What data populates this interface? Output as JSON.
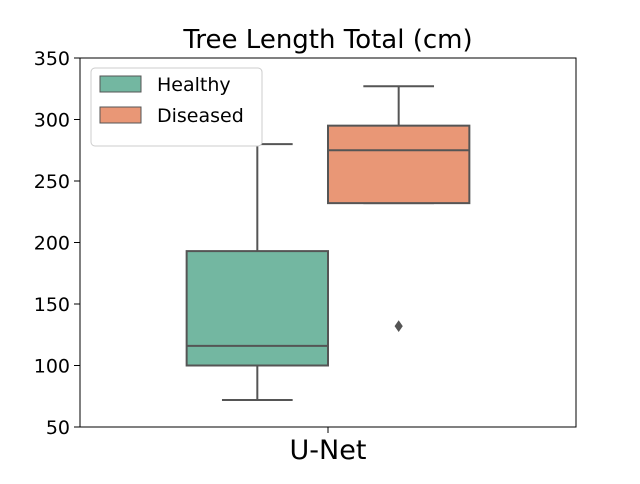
{
  "chart_data": {
    "type": "box",
    "title": "Tree Length Total (cm)",
    "xlabel": "",
    "ylabel": "",
    "categories": [
      "U-Net"
    ],
    "ylim": [
      50,
      350
    ],
    "yticks": [
      50,
      100,
      150,
      200,
      250,
      300,
      350
    ],
    "grid": false,
    "legend_position": "top-left",
    "series": [
      {
        "name": "Healthy",
        "color": "#73b7a1",
        "boxes": [
          {
            "category": "U-Net",
            "whisker_low": 72,
            "q1": 100,
            "median": 116,
            "q3": 193,
            "whisker_high": 280,
            "outliers": []
          }
        ]
      },
      {
        "name": "Diseased",
        "color": "#e99776",
        "boxes": [
          {
            "category": "U-Net",
            "whisker_low": 232,
            "q1": 232,
            "median": 275,
            "q3": 295,
            "whisker_high": 327,
            "outliers": [
              132
            ]
          }
        ]
      }
    ]
  }
}
